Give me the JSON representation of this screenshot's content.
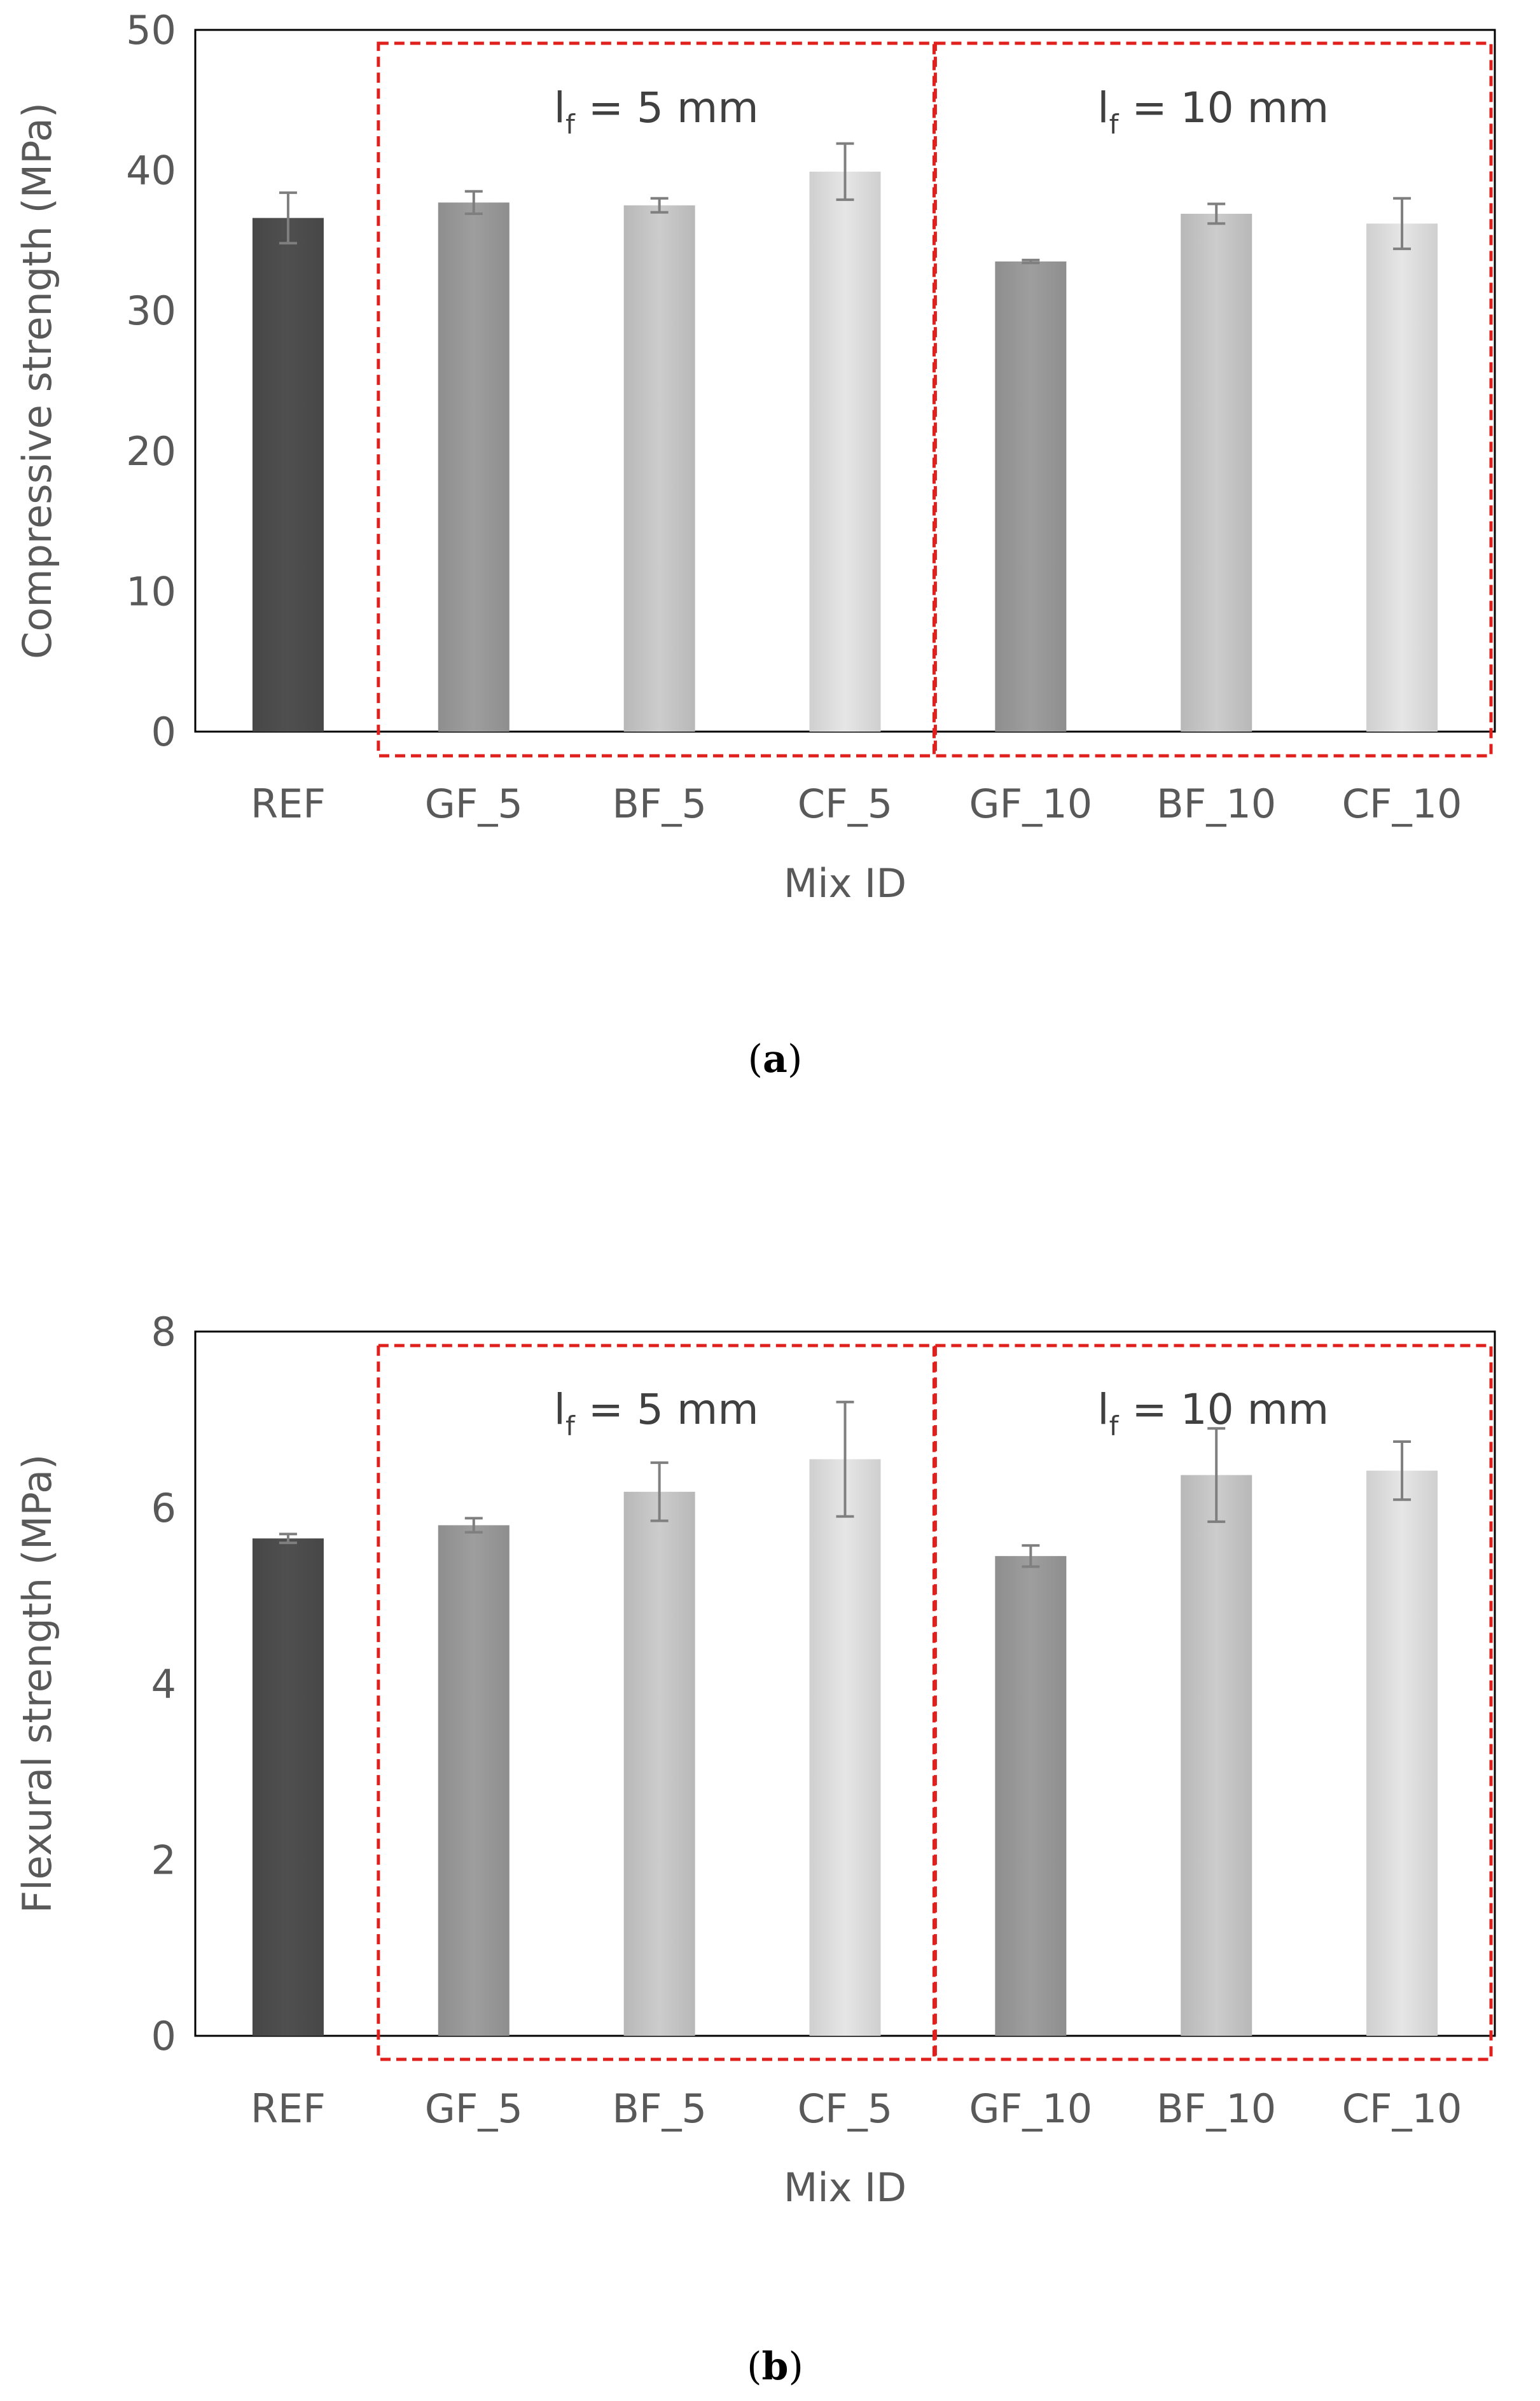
{
  "chart_data": [
    {
      "type": "bar",
      "panel_label": "a",
      "title": "",
      "xlabel": "Mix ID",
      "ylabel": "Compressive strength (MPa)",
      "ylim": [
        0,
        50
      ],
      "yticks": [
        0,
        10,
        20,
        30,
        40,
        50
      ],
      "grid": false,
      "categories": [
        "REF",
        "GF_5",
        "BF_5",
        "CF_5",
        "GF_10",
        "BF_10",
        "CF_10"
      ],
      "values": [
        36.6,
        37.7,
        37.5,
        39.9,
        33.5,
        36.9,
        36.2
      ],
      "errors": [
        1.8,
        0.8,
        0.5,
        2.0,
        0.1,
        0.7,
        1.8
      ],
      "bar_colors": [
        "#4f4f4f",
        "#9e9e9e",
        "#cccccc",
        "#e6e6e6",
        "#9e9e9e",
        "#cccccc",
        "#e6e6e6"
      ],
      "groups": [
        {
          "label_main": "l",
          "label_sub": "f",
          "label_rest": " = 5 mm",
          "categories": [
            "GF_5",
            "BF_5",
            "CF_5"
          ]
        },
        {
          "label_main": "l",
          "label_sub": "f",
          "label_rest": " = 10 mm",
          "categories": [
            "GF_10",
            "BF_10",
            "CF_10"
          ]
        }
      ],
      "group_box_color": "#e0201c"
    },
    {
      "type": "bar",
      "panel_label": "b",
      "title": "",
      "xlabel": "Mix ID",
      "ylabel": "Flexural strength (MPa)",
      "ylim": [
        0,
        8
      ],
      "yticks": [
        0,
        2,
        4,
        6,
        8
      ],
      "grid": false,
      "categories": [
        "REF",
        "GF_5",
        "BF_5",
        "CF_5",
        "GF_10",
        "BF_10",
        "CF_10"
      ],
      "values": [
        5.65,
        5.8,
        6.18,
        6.55,
        5.45,
        6.37,
        6.42
      ],
      "errors": [
        0.05,
        0.08,
        0.33,
        0.65,
        0.12,
        0.53,
        0.33
      ],
      "bar_colors": [
        "#4f4f4f",
        "#9e9e9e",
        "#cccccc",
        "#e6e6e6",
        "#9e9e9e",
        "#cccccc",
        "#e6e6e6"
      ],
      "groups": [
        {
          "label_main": "l",
          "label_sub": "f",
          "label_rest": " = 5 mm",
          "categories": [
            "GF_5",
            "BF_5",
            "CF_5"
          ]
        },
        {
          "label_main": "l",
          "label_sub": "f",
          "label_rest": " = 10 mm",
          "categories": [
            "GF_10",
            "BF_10",
            "CF_10"
          ]
        }
      ],
      "group_box_color": "#e0201c"
    }
  ]
}
